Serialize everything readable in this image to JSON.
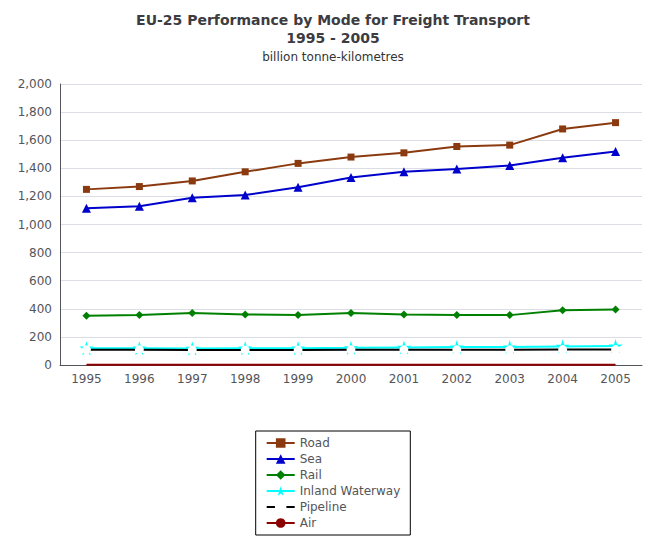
{
  "chart_data": {
    "type": "line",
    "title": "EU-25 Performance by Mode for Freight Transport\n1995 - 2005",
    "subtitle": "billion tonne-kilometres",
    "categories": [
      "1995",
      "1996",
      "1997",
      "1998",
      "1999",
      "2000",
      "2001",
      "2002",
      "2003",
      "2004",
      "2005"
    ],
    "series": [
      {
        "name": "Road",
        "color": "#8B3A0F",
        "marker": "square",
        "values": [
          1250,
          1270,
          1310,
          1375,
          1435,
          1480,
          1510,
          1555,
          1565,
          1680,
          1725
        ]
      },
      {
        "name": "Sea",
        "color": "#0000CD",
        "marker": "triangle",
        "values": [
          1115,
          1130,
          1190,
          1210,
          1265,
          1335,
          1375,
          1395,
          1420,
          1475,
          1520
        ]
      },
      {
        "name": "Rail",
        "color": "#008000",
        "marker": "diamond",
        "values": [
          350,
          355,
          370,
          360,
          355,
          370,
          360,
          355,
          355,
          390,
          395
        ]
      },
      {
        "name": "Inland Waterway",
        "color": "#00FFFF",
        "marker": "star",
        "values": [
          120,
          120,
          118,
          120,
          120,
          122,
          125,
          128,
          128,
          132,
          135
        ]
      },
      {
        "name": "Pipeline",
        "color": "#000000",
        "marker": "hollow_circle",
        "values": [
          108,
          108,
          106,
          106,
          106,
          108,
          108,
          108,
          108,
          110,
          110
        ]
      },
      {
        "name": "Air",
        "color": "#8B0000",
        "marker": "none",
        "values": [
          2,
          2,
          2,
          2,
          2,
          2,
          2,
          2,
          2,
          2,
          2
        ]
      }
    ],
    "ylim": [
      0,
      2000
    ],
    "yticks": [
      0,
      200,
      400,
      600,
      800,
      1000,
      1200,
      1400,
      1600,
      1800,
      2000
    ],
    "grid": true,
    "legend": "bottom"
  }
}
